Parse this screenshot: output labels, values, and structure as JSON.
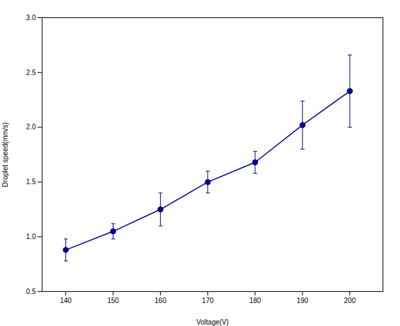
{
  "chart_data": {
    "type": "line",
    "x": [
      140,
      150,
      160,
      170,
      180,
      190,
      200
    ],
    "values": [
      0.88,
      1.05,
      1.25,
      1.5,
      1.68,
      2.02,
      2.33
    ],
    "yerr": [
      0.1,
      0.07,
      0.15,
      0.1,
      0.1,
      0.22,
      0.33
    ],
    "xlabel": "Voltage(V)",
    "ylabel": "Droplet speed(mm/s)",
    "xlim": [
      135,
      207
    ],
    "ylim": [
      0.5,
      3.0
    ],
    "xticks": [
      140,
      150,
      160,
      170,
      180,
      190,
      200
    ],
    "yticks": [
      0.5,
      {
        "value": 1,
        "label": "1.0"
      },
      1.5,
      {
        "value": 2,
        "label": "2.0"
      },
      2.5,
      {
        "value": 3,
        "label": "3.0"
      }
    ],
    "color": "#00008B",
    "marker": "o"
  }
}
